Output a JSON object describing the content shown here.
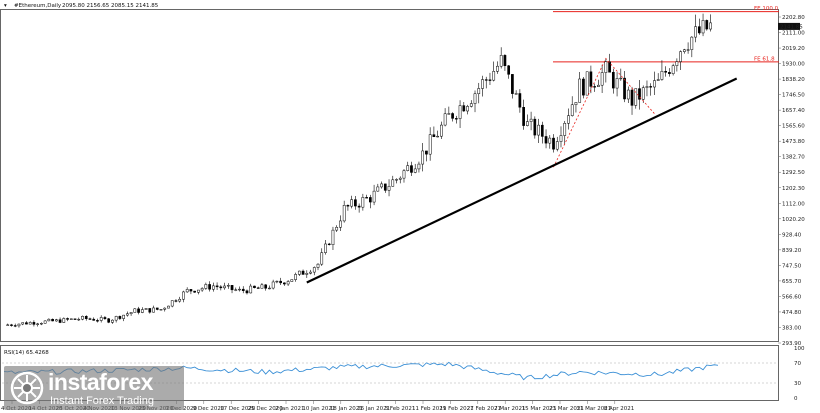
{
  "header": {
    "symbol": "#Ethereum,Daily",
    "ohlc": "2095.80 2156.65 2085.15 2141.85"
  },
  "rsi_label": "RSI(14) 65.4268",
  "watermark": {
    "brand": "instaforex",
    "tagline": "Instant Forex Trading"
  },
  "fib_labels": {
    "top": "FE 100.0",
    "mid": "FE 61.8"
  },
  "current_price": "2141.85",
  "colors": {
    "fib_line": "#e8231d",
    "trend_line": "#000000",
    "rsi_line": "#3a8fd6",
    "candle": "#000000",
    "path": "#e8231d"
  },
  "chart_data": [
    {
      "type": "candlestick",
      "title": "#Ethereum,Daily",
      "x_tick_labels": [
        "4 Oct 2020",
        "14 Oct 2020",
        "25 Oct 2020",
        "4 Nov 2020",
        "13 Nov 2020",
        "23 Nov 2020",
        "1 Dec 2020",
        "9 Dec 2020",
        "17 Dec 2020",
        "25 Dec 2020",
        "2 Jan 2021",
        "10 Jan 2021",
        "18 Jan 2021",
        "26 Jan 2021",
        "3 Feb 2021",
        "11 Feb 2021",
        "19 Feb 2021",
        "27 Feb 2021",
        "7 Mar 2021",
        "15 Mar 2021",
        "23 Mar 2021",
        "31 Mar 2021",
        "8 Apr 2021"
      ],
      "y_tick_labels": [
        "2202.80",
        "2111.00",
        "2019.20",
        "1930.00",
        "1838.20",
        "1746.50",
        "1657.40",
        "1565.60",
        "1473.80",
        "1382.70",
        "1292.50",
        "1202.30",
        "1112.00",
        "1020.20",
        "928.40",
        "839.20",
        "747.50",
        "655.70",
        "566.60",
        "474.80",
        "383.00",
        "293.90"
      ],
      "ylim": [
        260,
        2240
      ],
      "x_range": [
        "2020-10-04",
        "2021-04-13"
      ],
      "closes": [
        [
          "2020-10-04",
          355
        ],
        [
          "2020-10-11",
          370
        ],
        [
          "2020-10-18",
          380
        ],
        [
          "2020-10-25",
          395
        ],
        [
          "2020-11-01",
          385
        ],
        [
          "2020-11-08",
          440
        ],
        [
          "2020-11-15",
          450
        ],
        [
          "2020-11-22",
          560
        ],
        [
          "2020-11-29",
          590
        ],
        [
          "2020-12-06",
          560
        ],
        [
          "2020-12-13",
          580
        ],
        [
          "2020-12-20",
          635
        ],
        [
          "2020-12-27",
          720
        ],
        [
          "2021-01-03",
          1050
        ],
        [
          "2021-01-10",
          1120
        ],
        [
          "2021-01-17",
          1230
        ],
        [
          "2021-01-24",
          1380
        ],
        [
          "2021-01-31",
          1600
        ],
        [
          "2021-02-07",
          1750
        ],
        [
          "2021-02-14",
          1930
        ],
        [
          "2021-02-21",
          1550
        ],
        [
          "2021-02-28",
          1450
        ],
        [
          "2021-03-07",
          1780
        ],
        [
          "2021-03-14",
          1870
        ],
        [
          "2021-03-21",
          1700
        ],
        [
          "2021-03-28",
          1800
        ],
        [
          "2021-04-04",
          2050
        ],
        [
          "2021-04-11",
          2141.85
        ]
      ],
      "fib_levels": [
        {
          "label": "FE 100.0",
          "price": 2230
        },
        {
          "label": "FE 61.8",
          "price": 1930
        }
      ],
      "trendline": {
        "start": [
          "2020-12-24",
          610
        ],
        "end": [
          "2021-04-18",
          1830
        ]
      },
      "retracement_path": [
        [
          "2021-02-28",
          1300
        ],
        [
          "2021-03-14",
          1950
        ],
        [
          "2021-03-27",
          1620
        ]
      ]
    },
    {
      "type": "line",
      "title": "RSI(14) 65.4268",
      "ylim": [
        0,
        100
      ],
      "y_tick_labels": [
        "100",
        "70",
        "30",
        "0"
      ],
      "last_value": 65.4268,
      "x": [
        "2020-10-04",
        "2020-11-01",
        "2020-11-22",
        "2020-12-13",
        "2021-01-03",
        "2021-01-31",
        "2021-02-21",
        "2021-03-07",
        "2021-03-28",
        "2021-04-13"
      ],
      "values": [
        50,
        55,
        60,
        52,
        62,
        68,
        40,
        52,
        47,
        65.43
      ]
    }
  ]
}
